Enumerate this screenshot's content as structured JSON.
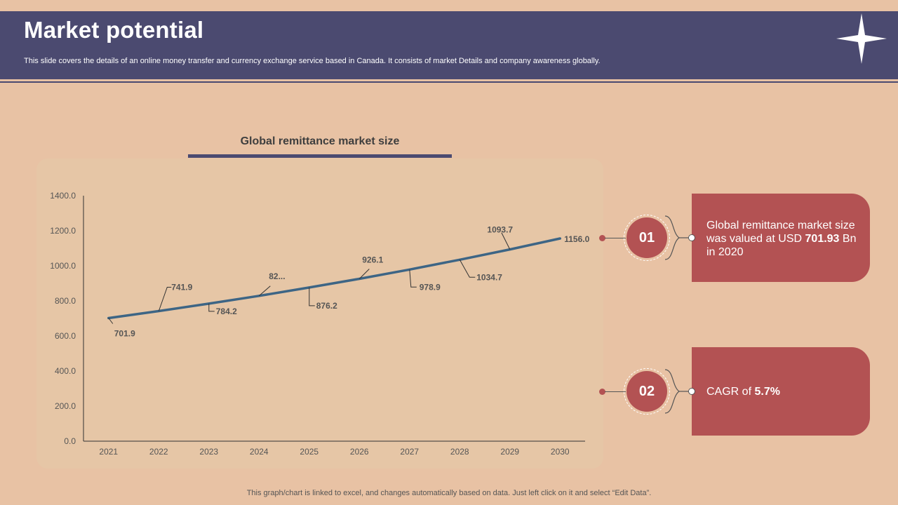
{
  "slide": {
    "title": "Market potential",
    "subtitle": "This slide covers the details of an online money transfer and currency exchange service based in Canada. It consists of market Details and company awareness globally.",
    "footer": "This graph/chart is linked to excel,  and changes automatically based on data. Just left click on it and select “Edit Data”."
  },
  "colors": {
    "header_bg": "#4B4A70",
    "page_bg": "#E8C2A4",
    "accent": "#B35253",
    "line": "#3D6585"
  },
  "chart_data": {
    "type": "line",
    "title": "Global remittance market size",
    "categories": [
      "2021",
      "2022",
      "2023",
      "2024",
      "2025",
      "2026",
      "2027",
      "2028",
      "2029",
      "2030"
    ],
    "series": [
      {
        "name": "Global remittance market size",
        "values": [
          701.9,
          741.9,
          784.2,
          829.0,
          876.2,
          926.1,
          978.9,
          1034.7,
          1093.7,
          1156.0
        ],
        "labels": [
          "701.9",
          "741.9",
          "784.2",
          "82...",
          "876.2",
          "926.1",
          "978.9",
          "1034.7",
          "1093.7",
          "1156.0"
        ]
      }
    ],
    "ylim": [
      0,
      1400
    ],
    "yticks": [
      "0.0",
      "200.0",
      "400.0",
      "600.0",
      "800.0",
      "1000.0",
      "1200.0",
      "1400.0"
    ],
    "xlabel": "",
    "ylabel": "",
    "grid": false,
    "legend": "none"
  },
  "cards": [
    {
      "number": "01",
      "text_before": "Global remittance market size was valued at USD ",
      "highlight": "701.93",
      "text_after": " Bn in 2020"
    },
    {
      "number": "02",
      "text_before": "CAGR of ",
      "highlight": "5.7%",
      "text_after": ""
    }
  ]
}
